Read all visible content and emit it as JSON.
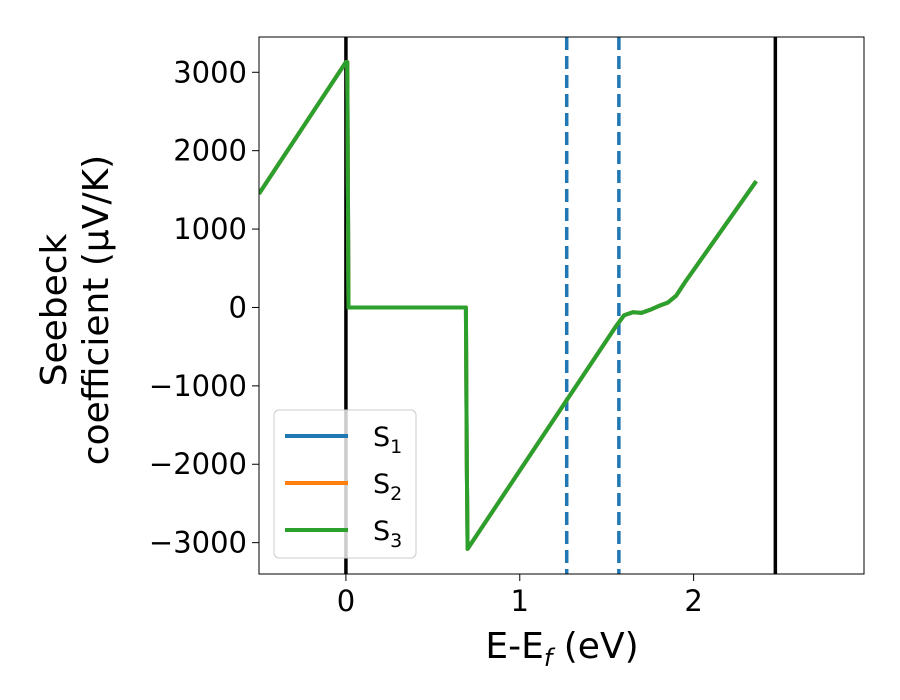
{
  "chart_data": {
    "type": "line",
    "title": "",
    "xlabel_main": "E-E",
    "xlabel_sub": "f",
    "xlabel_unit": " (eV)",
    "ylabel_line1": "Seebeck",
    "ylabel_line2": "coefficient  (μV/K)",
    "xlim": [
      -0.5,
      2.98
    ],
    "ylim": [
      -3400,
      3450
    ],
    "xticks": [
      0,
      1,
      2
    ],
    "xtick_labels": [
      "0",
      "1",
      "2"
    ],
    "yticks": [
      -3000,
      -2000,
      -1000,
      0,
      1000,
      2000,
      3000
    ],
    "ytick_labels": [
      "−3000",
      "−2000",
      "−1000",
      "0",
      "1000",
      "2000",
      "3000"
    ],
    "grid": false,
    "legend_placement": "lower-left",
    "series": [
      {
        "name": "S",
        "sub": "1",
        "color": "#1f77b4",
        "x": [
          -0.5,
          0.0,
          0.008,
          0.015,
          0.69,
          0.695,
          0.7,
          1.55,
          1.6,
          1.65,
          1.7,
          1.75,
          1.8,
          1.85,
          1.9,
          1.95,
          2.36
        ],
        "y": [
          1450,
          3130,
          3130,
          0,
          0,
          -2000,
          -3080,
          -250,
          -100,
          -60,
          -70,
          -30,
          20,
          60,
          150,
          320,
          1610
        ]
      },
      {
        "name": "S",
        "sub": "2",
        "color": "#ff7f0e",
        "x": [
          -0.5,
          0.0,
          0.008,
          0.015,
          0.69,
          0.695,
          0.7,
          1.55,
          1.6,
          1.65,
          1.7,
          1.75,
          1.8,
          1.85,
          1.9,
          1.95,
          2.36
        ],
        "y": [
          1450,
          3130,
          3130,
          0,
          0,
          -2000,
          -3080,
          -250,
          -100,
          -60,
          -70,
          -30,
          20,
          60,
          150,
          320,
          1610
        ]
      },
      {
        "name": "S",
        "sub": "3",
        "color": "#2ca02c",
        "x": [
          -0.5,
          0.0,
          0.008,
          0.015,
          0.69,
          0.695,
          0.7,
          1.55,
          1.6,
          1.65,
          1.7,
          1.75,
          1.8,
          1.85,
          1.9,
          1.95,
          2.36
        ],
        "y": [
          1450,
          3130,
          3130,
          0,
          0,
          -2000,
          -3080,
          -250,
          -100,
          -60,
          -70,
          -30,
          20,
          60,
          150,
          320,
          1610
        ]
      }
    ],
    "vlines": [
      {
        "x": 0.0,
        "color": "#000000",
        "style": "solid"
      },
      {
        "x": 2.47,
        "color": "#000000",
        "style": "solid"
      },
      {
        "x": 1.27,
        "color": "#1f77b4",
        "style": "dashed"
      },
      {
        "x": 1.57,
        "color": "#1f77b4",
        "style": "dashed"
      }
    ]
  }
}
